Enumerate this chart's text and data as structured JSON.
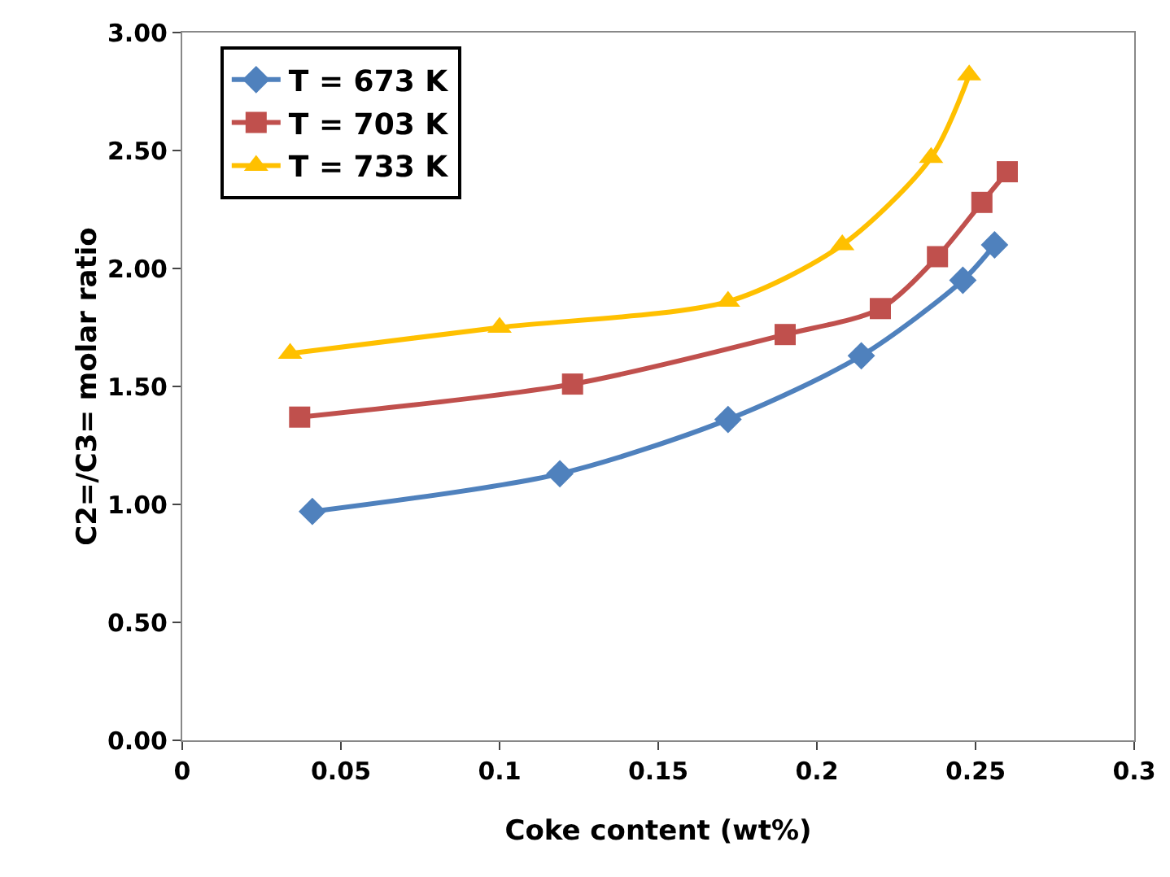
{
  "chart_data": {
    "type": "line",
    "xlabel": "Coke content (wt%)",
    "ylabel": "C2=/C3= molar ratio",
    "series": [
      {
        "name": "T = 673 K",
        "color": "#4f81bd",
        "marker": "diamond",
        "x": [
          0.041,
          0.119,
          0.172,
          0.214,
          0.246,
          0.256
        ],
        "values": [
          0.97,
          1.13,
          1.36,
          1.63,
          1.95,
          2.1
        ]
      },
      {
        "name": "T = 703 K",
        "color": "#c0504d",
        "marker": "square",
        "x": [
          0.037,
          0.123,
          0.19,
          0.22,
          0.238,
          0.252,
          0.26
        ],
        "values": [
          1.37,
          1.51,
          1.72,
          1.83,
          2.05,
          2.28,
          2.41
        ]
      },
      {
        "name": "T = 733 K",
        "color": "#ffc000",
        "marker": "triangle",
        "x": [
          0.034,
          0.1,
          0.172,
          0.208,
          0.236,
          0.248
        ],
        "values": [
          1.64,
          1.75,
          1.86,
          2.1,
          2.47,
          2.82
        ]
      }
    ],
    "xlim": [
      0,
      0.3
    ],
    "xticks": [
      0,
      0.05,
      0.1,
      0.15,
      0.2,
      0.25,
      0.3
    ],
    "ylim": [
      0,
      3
    ],
    "yticks": [
      {
        "value": 0,
        "label": "0.00"
      },
      {
        "value": 0.5,
        "label": "0.50"
      },
      {
        "value": 1,
        "label": "1.00"
      },
      {
        "value": 1.5,
        "label": "1.50"
      },
      {
        "value": 2,
        "label": "2.00"
      },
      {
        "value": 2.5,
        "label": "2.50"
      },
      {
        "value": 3,
        "label": "3.00"
      }
    ],
    "grid": false,
    "legend": "top left",
    "line_style": "solid"
  }
}
